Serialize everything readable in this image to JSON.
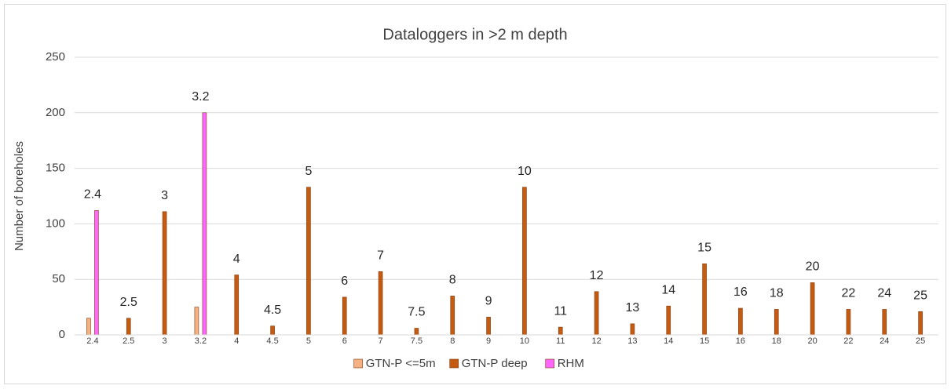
{
  "chart_data": {
    "type": "bar",
    "title": "Dataloggers in >2 m depth",
    "y_label": "Number of boreholes",
    "categories": [
      "2.4",
      "2.5",
      "3",
      "3.2",
      "4",
      "4.5",
      "5",
      "6",
      "7",
      "7.5",
      "8",
      "9",
      "10",
      "11",
      "12",
      "13",
      "14",
      "15",
      "16",
      "18",
      "20",
      "22",
      "24",
      "25"
    ],
    "series": [
      {
        "name": "GTN-P <=5m",
        "color": "#f4b183",
        "values": [
          15,
          0,
          0,
          25,
          0,
          0,
          0,
          0,
          0,
          0,
          0,
          0,
          0,
          0,
          0,
          0,
          0,
          0,
          0,
          0,
          0,
          0,
          0,
          0
        ]
      },
      {
        "name": "GTN-P deep",
        "color": "#c55a11",
        "values": [
          0,
          15,
          111,
          0,
          54,
          8,
          133,
          34,
          57,
          6,
          35,
          16,
          133,
          7,
          39,
          10,
          26,
          64,
          24,
          23,
          47,
          23,
          23,
          21
        ]
      },
      {
        "name": "RHM",
        "color": "#ff66ff",
        "values": [
          112,
          0,
          0,
          200,
          0,
          0,
          0,
          0,
          0,
          0,
          0,
          0,
          0,
          0,
          0,
          0,
          0,
          0,
          0,
          0,
          0,
          0,
          0,
          0
        ]
      }
    ],
    "ylim": [
      0,
      250
    ],
    "yticks": [
      0,
      50,
      100,
      150,
      200,
      250
    ],
    "grid": true,
    "legend": "bottom"
  }
}
